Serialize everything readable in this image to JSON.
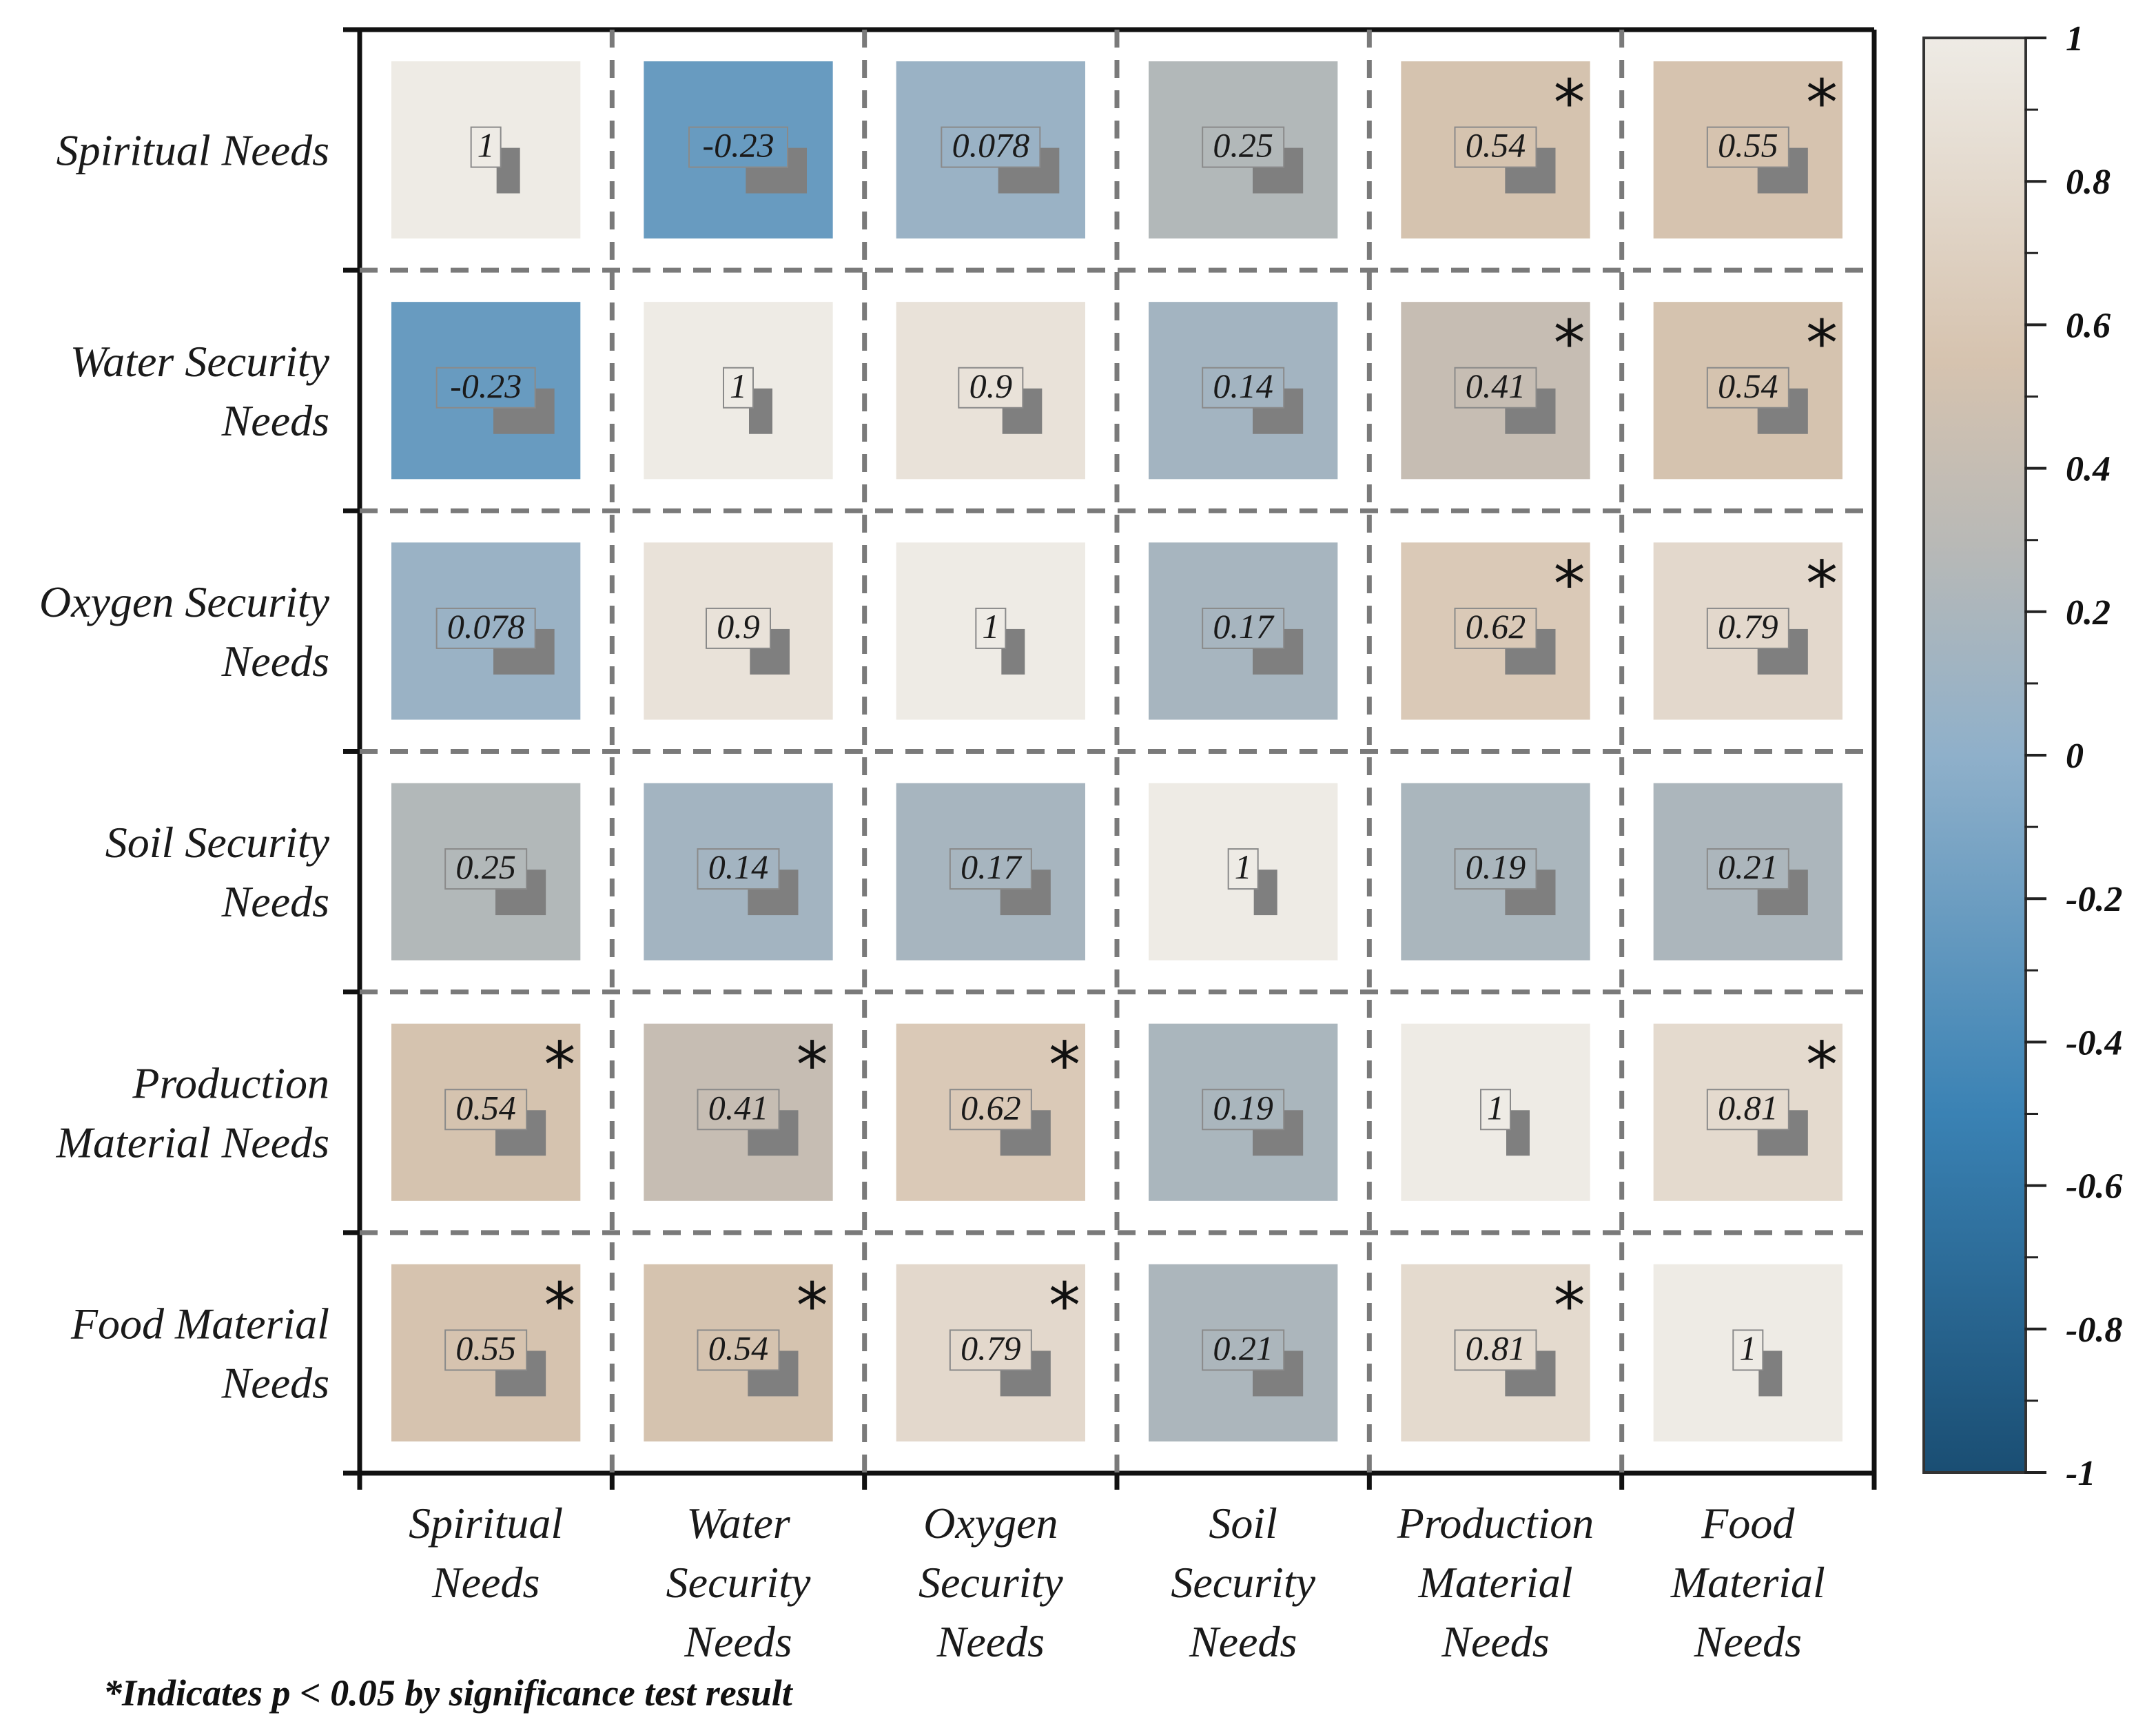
{
  "chart_data": {
    "type": "heatmap",
    "title": "",
    "row_labels": [
      [
        "Spiritual Needs"
      ],
      [
        "Water Security",
        "Needs"
      ],
      [
        "Oxygen Security",
        "Needs"
      ],
      [
        "Soil Security",
        "Needs"
      ],
      [
        "Production",
        "Material Needs"
      ],
      [
        "Food Material",
        "Needs"
      ]
    ],
    "col_labels": [
      [
        "Spiritual",
        "Needs"
      ],
      [
        "Water",
        "Security",
        "Needs"
      ],
      [
        "Oxygen",
        "Security",
        "Needs"
      ],
      [
        "Soil",
        "Security",
        "Needs"
      ],
      [
        "Production",
        "Material",
        "Needs"
      ],
      [
        "Food",
        "Material",
        "Needs"
      ]
    ],
    "values": [
      [
        "1",
        "-0.23",
        "0.078",
        "0.25",
        "0.54",
        "0.55"
      ],
      [
        "-0.23",
        "1",
        "0.9",
        "0.14",
        "0.41",
        "0.54"
      ],
      [
        "0.078",
        "0.9",
        "1",
        "0.17",
        "0.62",
        "0.79"
      ],
      [
        "0.25",
        "0.14",
        "0.17",
        "1",
        "0.19",
        "0.21"
      ],
      [
        "0.54",
        "0.41",
        "0.62",
        "0.19",
        "1",
        "0.81"
      ],
      [
        "0.55",
        "0.54",
        "0.79",
        "0.21",
        "0.81",
        "1"
      ]
    ],
    "significant": [
      [
        false,
        false,
        false,
        false,
        true,
        true
      ],
      [
        false,
        false,
        false,
        false,
        true,
        true
      ],
      [
        false,
        false,
        false,
        false,
        true,
        true
      ],
      [
        false,
        false,
        false,
        false,
        false,
        false
      ],
      [
        true,
        true,
        true,
        false,
        false,
        true
      ],
      [
        true,
        true,
        true,
        false,
        true,
        false
      ]
    ],
    "star_symbol": "*",
    "colorbar": {
      "range": [
        -1,
        1
      ],
      "ticks": [
        "1",
        "0.8",
        "0.6",
        "0.4",
        "0.2",
        "0",
        "-0.2",
        "-0.4",
        "-0.6",
        "-0.8",
        "-1"
      ],
      "colors": {
        "neg1": "#1a4e73",
        "neg05": "#3a82b4",
        "zero": "#8fb0ca",
        "pos03": "#b9b9b6",
        "pos055": "#d6c3af",
        "pos1": "#eeebe5"
      }
    },
    "footnote": "*Indicates p < 0.05 by significance test result"
  }
}
